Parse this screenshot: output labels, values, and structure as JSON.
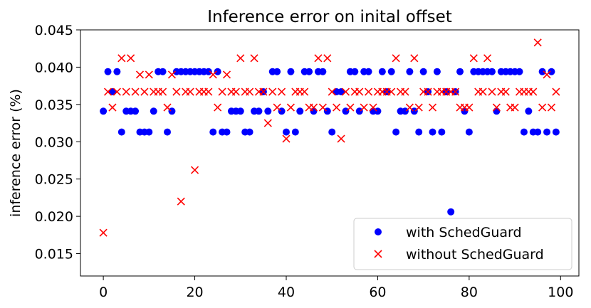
{
  "chart_data": {
    "type": "scatter",
    "title": "Inference error on inital offset",
    "xlabel": "",
    "ylabel": "inference error (%)",
    "xlim": [
      -5,
      104
    ],
    "ylim": [
      0.012,
      0.045
    ],
    "xticks": [
      0,
      20,
      40,
      60,
      80,
      100
    ],
    "yticks": [
      0.015,
      0.02,
      0.025,
      0.03,
      0.035,
      0.04,
      0.045
    ],
    "ytick_labels": [
      "0.015",
      "0.020",
      "0.025",
      "0.030",
      "0.035",
      "0.040",
      "0.045"
    ],
    "grid": false,
    "legend": "lower-right",
    "series": [
      {
        "name": "with SchedGuard",
        "marker": "circle",
        "color": "#0000ff",
        "x": [
          0,
          1,
          2,
          3,
          4,
          5,
          6,
          7,
          8,
          9,
          10,
          11,
          12,
          13,
          14,
          15,
          16,
          17,
          18,
          19,
          20,
          21,
          22,
          23,
          24,
          25,
          26,
          27,
          28,
          29,
          30,
          31,
          32,
          33,
          34,
          35,
          36,
          37,
          38,
          39,
          40,
          41,
          42,
          43,
          44,
          45,
          46,
          47,
          48,
          49,
          50,
          51,
          52,
          53,
          54,
          55,
          56,
          57,
          58,
          59,
          60,
          61,
          62,
          63,
          64,
          65,
          66,
          67,
          68,
          69,
          70,
          71,
          72,
          73,
          74,
          75,
          76,
          77,
          78,
          79,
          80,
          81,
          82,
          83,
          84,
          85,
          86,
          87,
          88,
          89,
          90,
          91,
          92,
          93,
          94,
          95,
          96,
          97,
          98,
          99
        ],
        "y": [
          0.0341,
          0.0394,
          0.0367,
          0.0394,
          0.0313,
          0.0341,
          0.0341,
          0.0341,
          0.0313,
          0.0313,
          0.0313,
          0.0341,
          0.0394,
          0.0394,
          0.0313,
          0.0341,
          0.0394,
          0.0394,
          0.0394,
          0.0394,
          0.0394,
          0.0394,
          0.0394,
          0.0394,
          0.0313,
          0.0394,
          0.0313,
          0.0313,
          0.0341,
          0.0341,
          0.0341,
          0.0313,
          0.0313,
          0.0341,
          0.0341,
          0.0367,
          0.0341,
          0.0394,
          0.0394,
          0.0341,
          0.0313,
          0.0394,
          0.0313,
          0.0341,
          0.0394,
          0.0394,
          0.0341,
          0.0394,
          0.0394,
          0.0341,
          0.0313,
          0.0367,
          0.0367,
          0.0341,
          0.0394,
          0.0394,
          0.0341,
          0.0394,
          0.0394,
          0.0341,
          0.0341,
          0.0394,
          0.0367,
          0.0394,
          0.0313,
          0.0341,
          0.0341,
          0.0394,
          0.0341,
          0.0313,
          0.0394,
          0.0367,
          0.0313,
          0.0394,
          0.0313,
          0.0367,
          0.0206,
          0.0367,
          0.0394,
          0.0341,
          0.0313,
          0.0394,
          0.0394,
          0.0394,
          0.0394,
          0.0394,
          0.0341,
          0.0394,
          0.0394,
          0.0394,
          0.0394,
          0.0394,
          0.0313,
          0.0341,
          0.0313,
          0.0313,
          0.0394,
          0.0313,
          0.0394,
          0.0313
        ]
      },
      {
        "name": "without SchedGuard",
        "marker": "x",
        "color": "#ff0000",
        "x": [
          0,
          1,
          2,
          3,
          4,
          5,
          6,
          7,
          8,
          9,
          10,
          11,
          12,
          13,
          14,
          15,
          16,
          17,
          18,
          19,
          20,
          21,
          22,
          23,
          24,
          25,
          26,
          27,
          28,
          29,
          30,
          31,
          32,
          33,
          34,
          35,
          36,
          37,
          38,
          39,
          40,
          41,
          42,
          43,
          44,
          45,
          46,
          47,
          48,
          49,
          50,
          51,
          52,
          53,
          54,
          55,
          56,
          57,
          58,
          59,
          60,
          61,
          62,
          63,
          64,
          65,
          66,
          67,
          68,
          69,
          70,
          71,
          72,
          73,
          74,
          75,
          76,
          77,
          78,
          79,
          80,
          81,
          82,
          83,
          84,
          85,
          86,
          87,
          88,
          89,
          90,
          91,
          92,
          93,
          94,
          95,
          96,
          97,
          98,
          99
        ],
        "y": [
          0.0178,
          0.0367,
          0.0346,
          0.0367,
          0.0412,
          0.0367,
          0.0412,
          0.0367,
          0.039,
          0.0367,
          0.039,
          0.0367,
          0.0367,
          0.0367,
          0.0346,
          0.039,
          0.0367,
          0.022,
          0.0367,
          0.0367,
          0.0262,
          0.0367,
          0.0367,
          0.0367,
          0.039,
          0.0346,
          0.0367,
          0.039,
          0.0367,
          0.0367,
          0.0412,
          0.0367,
          0.0367,
          0.0412,
          0.0367,
          0.0367,
          0.0325,
          0.0367,
          0.0346,
          0.0367,
          0.0304,
          0.0346,
          0.0367,
          0.0367,
          0.0367,
          0.0346,
          0.0346,
          0.0412,
          0.0346,
          0.0412,
          0.0367,
          0.0346,
          0.0304,
          0.0367,
          0.0346,
          0.0367,
          0.0367,
          0.0346,
          0.0367,
          0.0346,
          0.0367,
          0.0367,
          0.0367,
          0.0367,
          0.0412,
          0.0367,
          0.0367,
          0.0346,
          0.0412,
          0.0346,
          0.0367,
          0.0367,
          0.0346,
          0.0367,
          0.0367,
          0.0367,
          0.0367,
          0.0367,
          0.0346,
          0.0346,
          0.0346,
          0.0412,
          0.0367,
          0.0367,
          0.0412,
          0.0367,
          0.0346,
          0.0367,
          0.0367,
          0.0346,
          0.0346,
          0.0367,
          0.0367,
          0.0367,
          0.0367,
          0.0433,
          0.0346,
          0.039,
          0.0346,
          0.0367
        ]
      }
    ]
  }
}
